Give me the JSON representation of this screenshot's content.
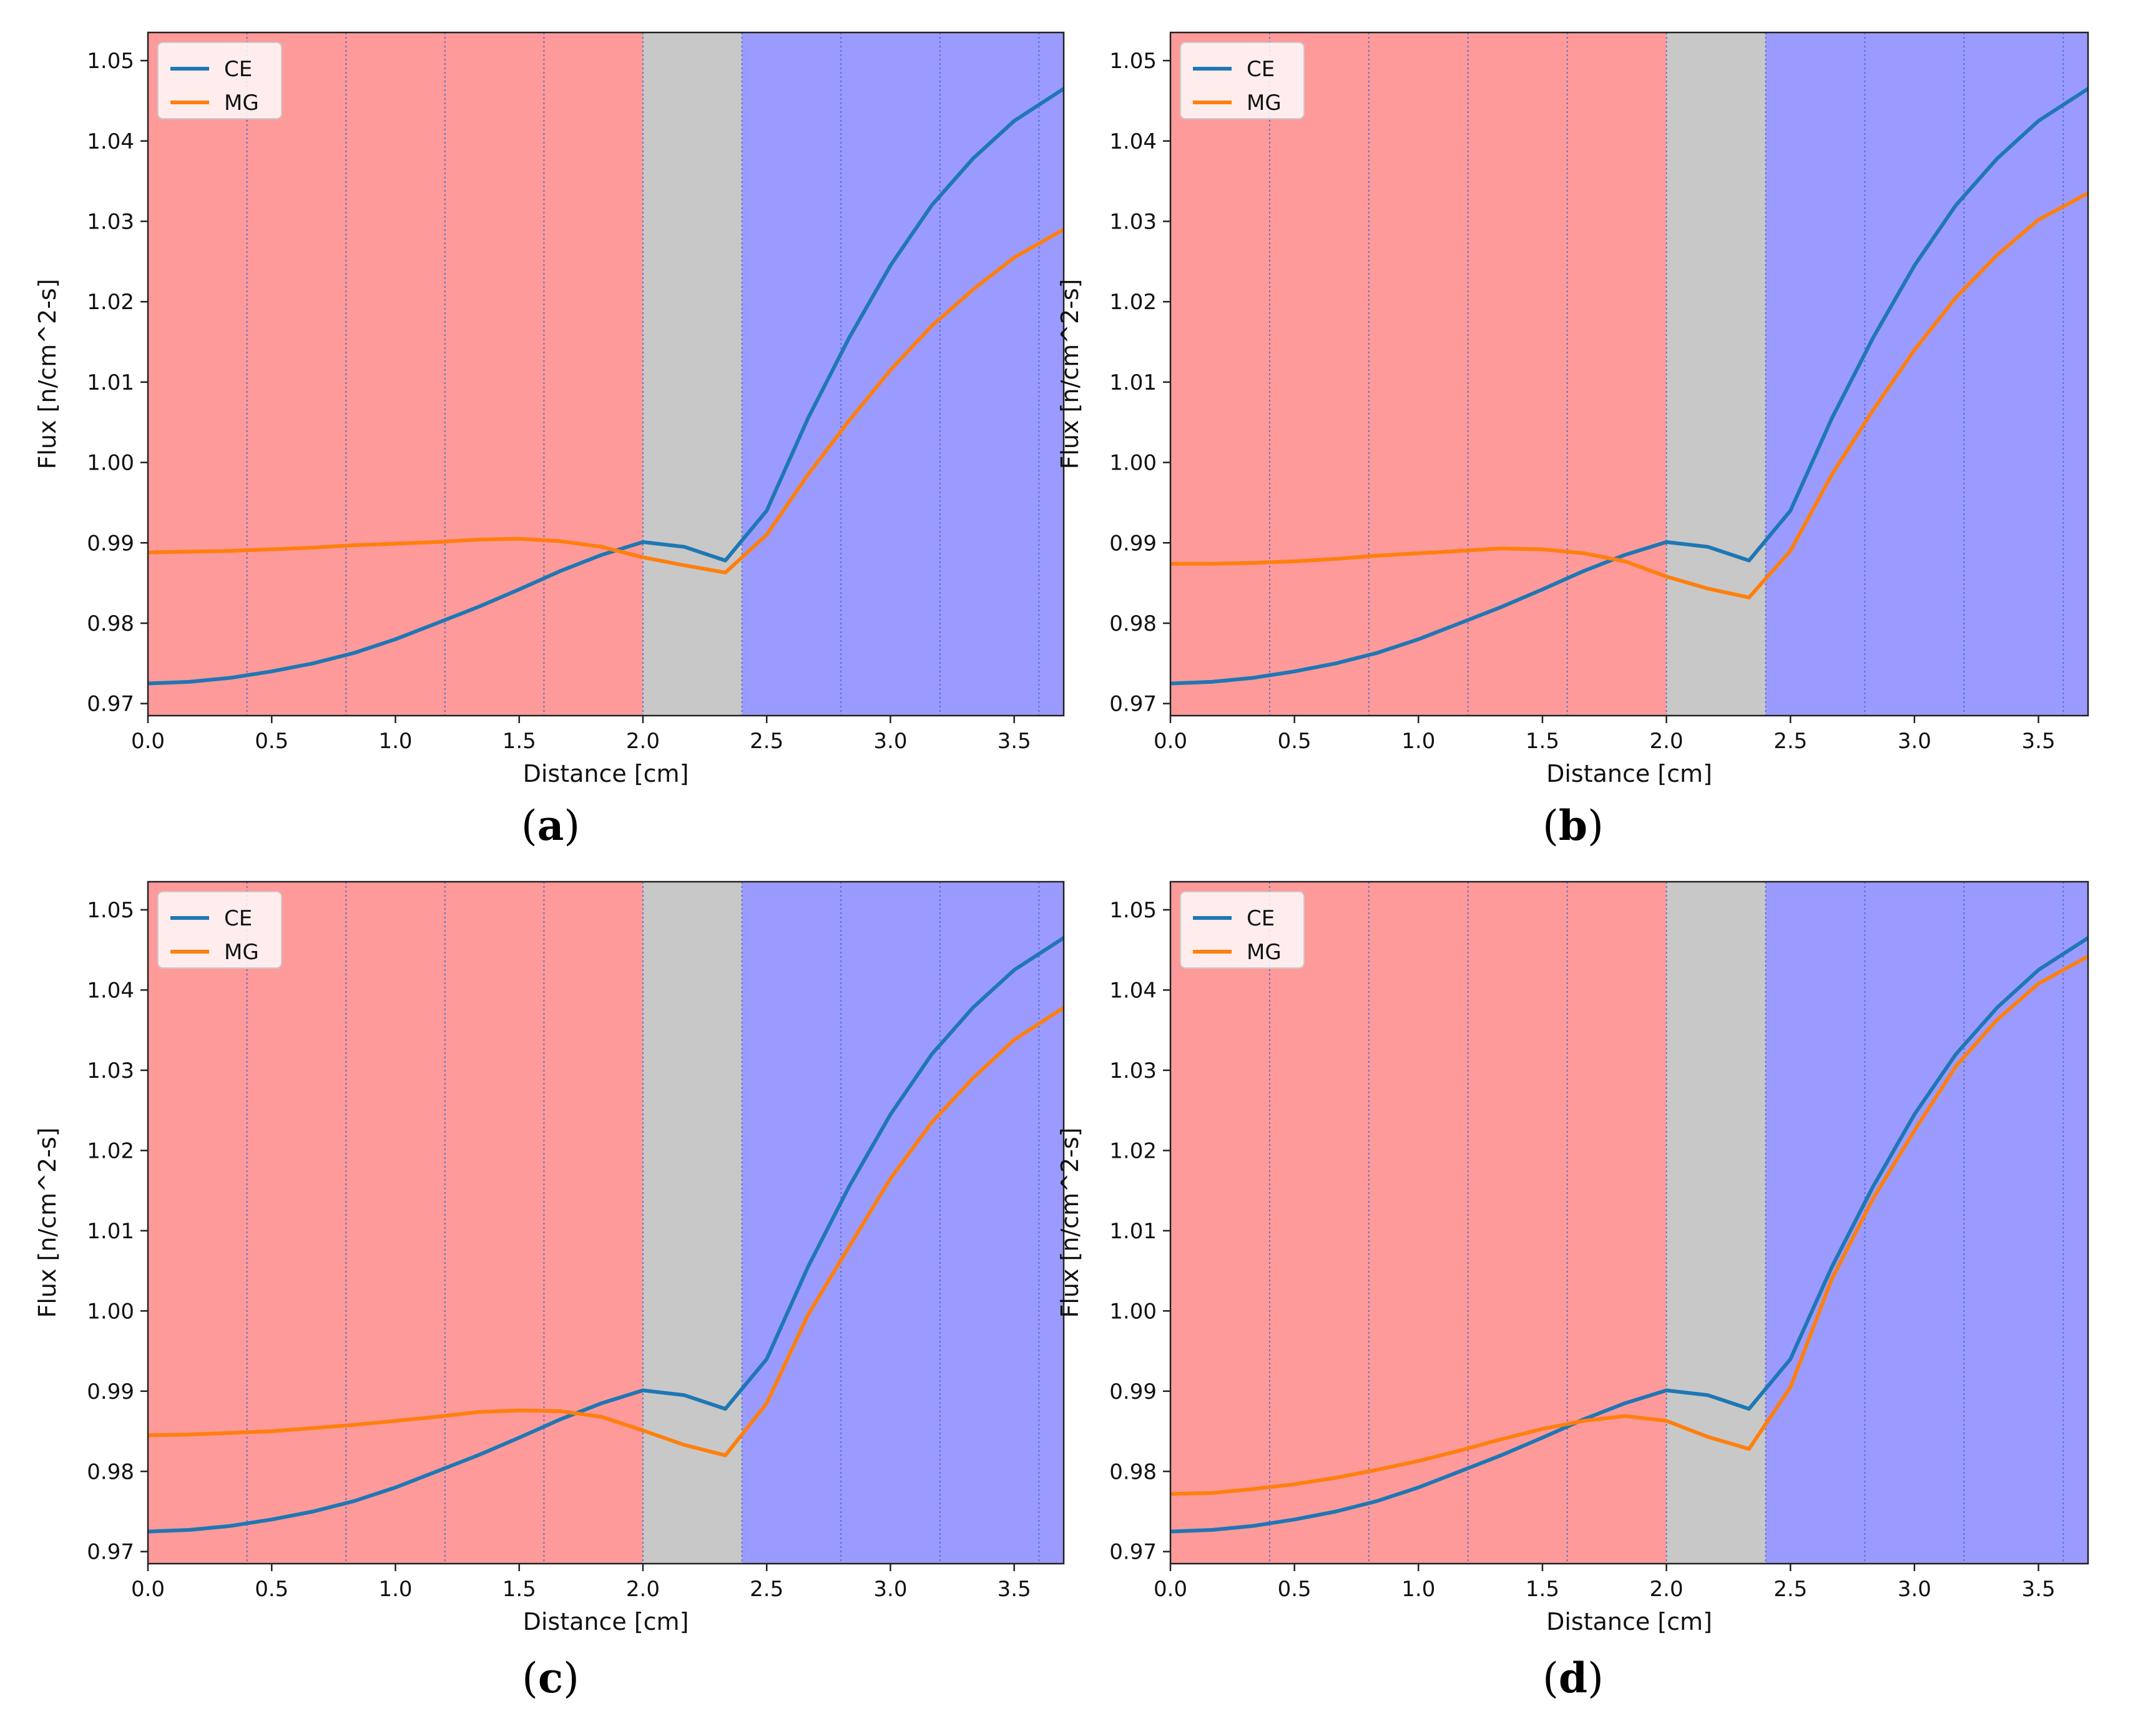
{
  "chart_data": [
    {
      "type": "line",
      "caption": "(a)",
      "caption_letter": "a",
      "xlabel": "Distance [cm]",
      "ylabel": "Flux [n/cm^2-s]",
      "xlim": [
        0,
        3.7
      ],
      "ylim": [
        0.9685,
        1.0535
      ],
      "xticks": [
        0.0,
        0.5,
        1.0,
        1.5,
        2.0,
        2.5,
        3.0,
        3.5
      ],
      "xtick_labels": [
        "0.0",
        "0.5",
        "1.0",
        "1.5",
        "2.0",
        "2.5",
        "3.0",
        "3.5"
      ],
      "yticks": [
        0.97,
        0.98,
        0.99,
        1.0,
        1.01,
        1.02,
        1.03,
        1.04,
        1.05
      ],
      "ytick_labels": [
        "0.97",
        "0.98",
        "0.99",
        "1.00",
        "1.01",
        "1.02",
        "1.03",
        "1.04",
        "1.05"
      ],
      "regions": [
        {
          "x0": 0.0,
          "x1": 2.0,
          "color": "#ff9a9a"
        },
        {
          "x0": 2.0,
          "x1": 2.4,
          "color": "#c8c8c8"
        },
        {
          "x0": 2.4,
          "x1": 3.7,
          "color": "#9b9bff"
        }
      ],
      "vlines": [
        0.4,
        0.8,
        1.2,
        1.6,
        2.0,
        2.4,
        2.8,
        3.2,
        3.6
      ],
      "legend_position": "upper left",
      "series": [
        {
          "name": "CE",
          "color": "#1f77b4",
          "x": [
            0.0,
            0.167,
            0.333,
            0.5,
            0.667,
            0.833,
            1.0,
            1.167,
            1.333,
            1.5,
            1.667,
            1.833,
            2.0,
            2.167,
            2.333,
            2.5,
            2.667,
            2.833,
            3.0,
            3.167,
            3.333,
            3.5,
            3.7
          ],
          "y": [
            0.9725,
            0.9727,
            0.9732,
            0.974,
            0.975,
            0.9763,
            0.978,
            0.98,
            0.982,
            0.9842,
            0.9865,
            0.9885,
            0.9901,
            0.9895,
            0.9878,
            0.994,
            1.0055,
            1.0155,
            1.0245,
            1.032,
            1.0378,
            1.0425,
            1.0465
          ]
        },
        {
          "name": "MG",
          "color": "#ff7f0e",
          "x": [
            0.0,
            0.167,
            0.333,
            0.5,
            0.667,
            0.833,
            1.0,
            1.167,
            1.333,
            1.5,
            1.667,
            1.833,
            2.0,
            2.167,
            2.333,
            2.5,
            2.667,
            2.833,
            3.0,
            3.167,
            3.333,
            3.5,
            3.7
          ],
          "y": [
            0.9888,
            0.9889,
            0.989,
            0.9892,
            0.9894,
            0.9897,
            0.9899,
            0.9901,
            0.9904,
            0.9905,
            0.9902,
            0.9895,
            0.9882,
            0.9872,
            0.9863,
            0.991,
            0.9985,
            1.0052,
            1.0115,
            1.017,
            1.0215,
            1.0255,
            1.029
          ]
        }
      ]
    },
    {
      "type": "line",
      "caption": "(b)",
      "caption_letter": "b",
      "xlabel": "Distance [cm]",
      "ylabel": "Flux [n/cm^2-s]",
      "xlim": [
        0,
        3.7
      ],
      "ylim": [
        0.9685,
        1.0535
      ],
      "xticks": [
        0.0,
        0.5,
        1.0,
        1.5,
        2.0,
        2.5,
        3.0,
        3.5
      ],
      "xtick_labels": [
        "0.0",
        "0.5",
        "1.0",
        "1.5",
        "2.0",
        "2.5",
        "3.0",
        "3.5"
      ],
      "yticks": [
        0.97,
        0.98,
        0.99,
        1.0,
        1.01,
        1.02,
        1.03,
        1.04,
        1.05
      ],
      "ytick_labels": [
        "0.97",
        "0.98",
        "0.99",
        "1.00",
        "1.01",
        "1.02",
        "1.03",
        "1.04",
        "1.05"
      ],
      "regions": [
        {
          "x0": 0.0,
          "x1": 2.0,
          "color": "#ff9a9a"
        },
        {
          "x0": 2.0,
          "x1": 2.4,
          "color": "#c8c8c8"
        },
        {
          "x0": 2.4,
          "x1": 3.7,
          "color": "#9b9bff"
        }
      ],
      "vlines": [
        0.4,
        0.8,
        1.2,
        1.6,
        2.0,
        2.4,
        2.8,
        3.2,
        3.6
      ],
      "legend_position": "upper left",
      "series": [
        {
          "name": "CE",
          "color": "#1f77b4",
          "x": [
            0.0,
            0.167,
            0.333,
            0.5,
            0.667,
            0.833,
            1.0,
            1.167,
            1.333,
            1.5,
            1.667,
            1.833,
            2.0,
            2.167,
            2.333,
            2.5,
            2.667,
            2.833,
            3.0,
            3.167,
            3.333,
            3.5,
            3.7
          ],
          "y": [
            0.9725,
            0.9727,
            0.9732,
            0.974,
            0.975,
            0.9763,
            0.978,
            0.98,
            0.982,
            0.9842,
            0.9865,
            0.9885,
            0.9901,
            0.9895,
            0.9878,
            0.994,
            1.0055,
            1.0155,
            1.0245,
            1.032,
            1.0378,
            1.0425,
            1.0465
          ]
        },
        {
          "name": "MG",
          "color": "#ff7f0e",
          "x": [
            0.0,
            0.167,
            0.333,
            0.5,
            0.667,
            0.833,
            1.0,
            1.167,
            1.333,
            1.5,
            1.667,
            1.833,
            2.0,
            2.167,
            2.333,
            2.5,
            2.667,
            2.833,
            3.0,
            3.167,
            3.333,
            3.5,
            3.7
          ],
          "y": [
            0.9874,
            0.9874,
            0.9875,
            0.9877,
            0.988,
            0.9884,
            0.9887,
            0.989,
            0.9893,
            0.9892,
            0.9887,
            0.9877,
            0.9858,
            0.9843,
            0.9832,
            0.989,
            0.9985,
            1.0065,
            1.014,
            1.0205,
            1.0258,
            1.0302,
            1.0335
          ]
        }
      ]
    },
    {
      "type": "line",
      "caption": "(c)",
      "caption_letter": "c",
      "xlabel": "Distance [cm]",
      "ylabel": "Flux [n/cm^2-s]",
      "xlim": [
        0,
        3.7
      ],
      "ylim": [
        0.9685,
        1.0535
      ],
      "xticks": [
        0.0,
        0.5,
        1.0,
        1.5,
        2.0,
        2.5,
        3.0,
        3.5
      ],
      "xtick_labels": [
        "0.0",
        "0.5",
        "1.0",
        "1.5",
        "2.0",
        "2.5",
        "3.0",
        "3.5"
      ],
      "yticks": [
        0.97,
        0.98,
        0.99,
        1.0,
        1.01,
        1.02,
        1.03,
        1.04,
        1.05
      ],
      "ytick_labels": [
        "0.97",
        "0.98",
        "0.99",
        "1.00",
        "1.01",
        "1.02",
        "1.03",
        "1.04",
        "1.05"
      ],
      "regions": [
        {
          "x0": 0.0,
          "x1": 2.0,
          "color": "#ff9a9a"
        },
        {
          "x0": 2.0,
          "x1": 2.4,
          "color": "#c8c8c8"
        },
        {
          "x0": 2.4,
          "x1": 3.7,
          "color": "#9b9bff"
        }
      ],
      "vlines": [
        0.4,
        0.8,
        1.2,
        1.6,
        2.0,
        2.4,
        2.8,
        3.2,
        3.6
      ],
      "legend_position": "upper left",
      "series": [
        {
          "name": "CE",
          "color": "#1f77b4",
          "x": [
            0.0,
            0.167,
            0.333,
            0.5,
            0.667,
            0.833,
            1.0,
            1.167,
            1.333,
            1.5,
            1.667,
            1.833,
            2.0,
            2.167,
            2.333,
            2.5,
            2.667,
            2.833,
            3.0,
            3.167,
            3.333,
            3.5,
            3.7
          ],
          "y": [
            0.9725,
            0.9727,
            0.9732,
            0.974,
            0.975,
            0.9763,
            0.978,
            0.98,
            0.982,
            0.9842,
            0.9865,
            0.9885,
            0.9901,
            0.9895,
            0.9878,
            0.994,
            1.0055,
            1.0155,
            1.0245,
            1.032,
            1.0378,
            1.0425,
            1.0465
          ]
        },
        {
          "name": "MG",
          "color": "#ff7f0e",
          "x": [
            0.0,
            0.167,
            0.333,
            0.5,
            0.667,
            0.833,
            1.0,
            1.167,
            1.333,
            1.5,
            1.667,
            1.833,
            2.0,
            2.167,
            2.333,
            2.5,
            2.667,
            2.833,
            3.0,
            3.167,
            3.333,
            3.5,
            3.7
          ],
          "y": [
            0.9845,
            0.9846,
            0.9848,
            0.985,
            0.9854,
            0.9858,
            0.9863,
            0.9868,
            0.9874,
            0.9876,
            0.9875,
            0.9868,
            0.9851,
            0.9833,
            0.982,
            0.9885,
            0.9995,
            1.008,
            1.0165,
            1.0235,
            1.029,
            1.0338,
            1.0378
          ]
        }
      ]
    },
    {
      "type": "line",
      "caption": "(d)",
      "caption_letter": "d",
      "xlabel": "Distance [cm]",
      "ylabel": "Flux [n/cm^2-s]",
      "xlim": [
        0,
        3.7
      ],
      "ylim": [
        0.9685,
        1.0535
      ],
      "xticks": [
        0.0,
        0.5,
        1.0,
        1.5,
        2.0,
        2.5,
        3.0,
        3.5
      ],
      "xtick_labels": [
        "0.0",
        "0.5",
        "1.0",
        "1.5",
        "2.0",
        "2.5",
        "3.0",
        "3.5"
      ],
      "yticks": [
        0.97,
        0.98,
        0.99,
        1.0,
        1.01,
        1.02,
        1.03,
        1.04,
        1.05
      ],
      "ytick_labels": [
        "0.97",
        "0.98",
        "0.99",
        "1.00",
        "1.01",
        "1.02",
        "1.03",
        "1.04",
        "1.05"
      ],
      "regions": [
        {
          "x0": 0.0,
          "x1": 2.0,
          "color": "#ff9a9a"
        },
        {
          "x0": 2.0,
          "x1": 2.4,
          "color": "#c8c8c8"
        },
        {
          "x0": 2.4,
          "x1": 3.7,
          "color": "#9b9bff"
        }
      ],
      "vlines": [
        0.4,
        0.8,
        1.2,
        1.6,
        2.0,
        2.4,
        2.8,
        3.2,
        3.6
      ],
      "legend_position": "upper left",
      "series": [
        {
          "name": "CE",
          "color": "#1f77b4",
          "x": [
            0.0,
            0.167,
            0.333,
            0.5,
            0.667,
            0.833,
            1.0,
            1.167,
            1.333,
            1.5,
            1.667,
            1.833,
            2.0,
            2.167,
            2.333,
            2.5,
            2.667,
            2.833,
            3.0,
            3.167,
            3.333,
            3.5,
            3.7
          ],
          "y": [
            0.9725,
            0.9727,
            0.9732,
            0.974,
            0.975,
            0.9763,
            0.978,
            0.98,
            0.982,
            0.9842,
            0.9865,
            0.9885,
            0.9901,
            0.9895,
            0.9878,
            0.994,
            1.0055,
            1.0155,
            1.0245,
            1.032,
            1.0378,
            1.0425,
            1.0465
          ]
        },
        {
          "name": "MG",
          "color": "#ff7f0e",
          "x": [
            0.0,
            0.167,
            0.333,
            0.5,
            0.667,
            0.833,
            1.0,
            1.167,
            1.333,
            1.5,
            1.667,
            1.833,
            2.0,
            2.167,
            2.333,
            2.5,
            2.667,
            2.833,
            3.0,
            3.167,
            3.333,
            3.5,
            3.7
          ],
          "y": [
            0.9772,
            0.9773,
            0.9778,
            0.9784,
            0.9792,
            0.9802,
            0.9813,
            0.9826,
            0.984,
            0.9853,
            0.9863,
            0.9869,
            0.9863,
            0.9843,
            0.9828,
            0.9905,
            1.004,
            1.014,
            1.0225,
            1.0305,
            1.0363,
            1.0408,
            1.0442
          ]
        }
      ]
    }
  ]
}
